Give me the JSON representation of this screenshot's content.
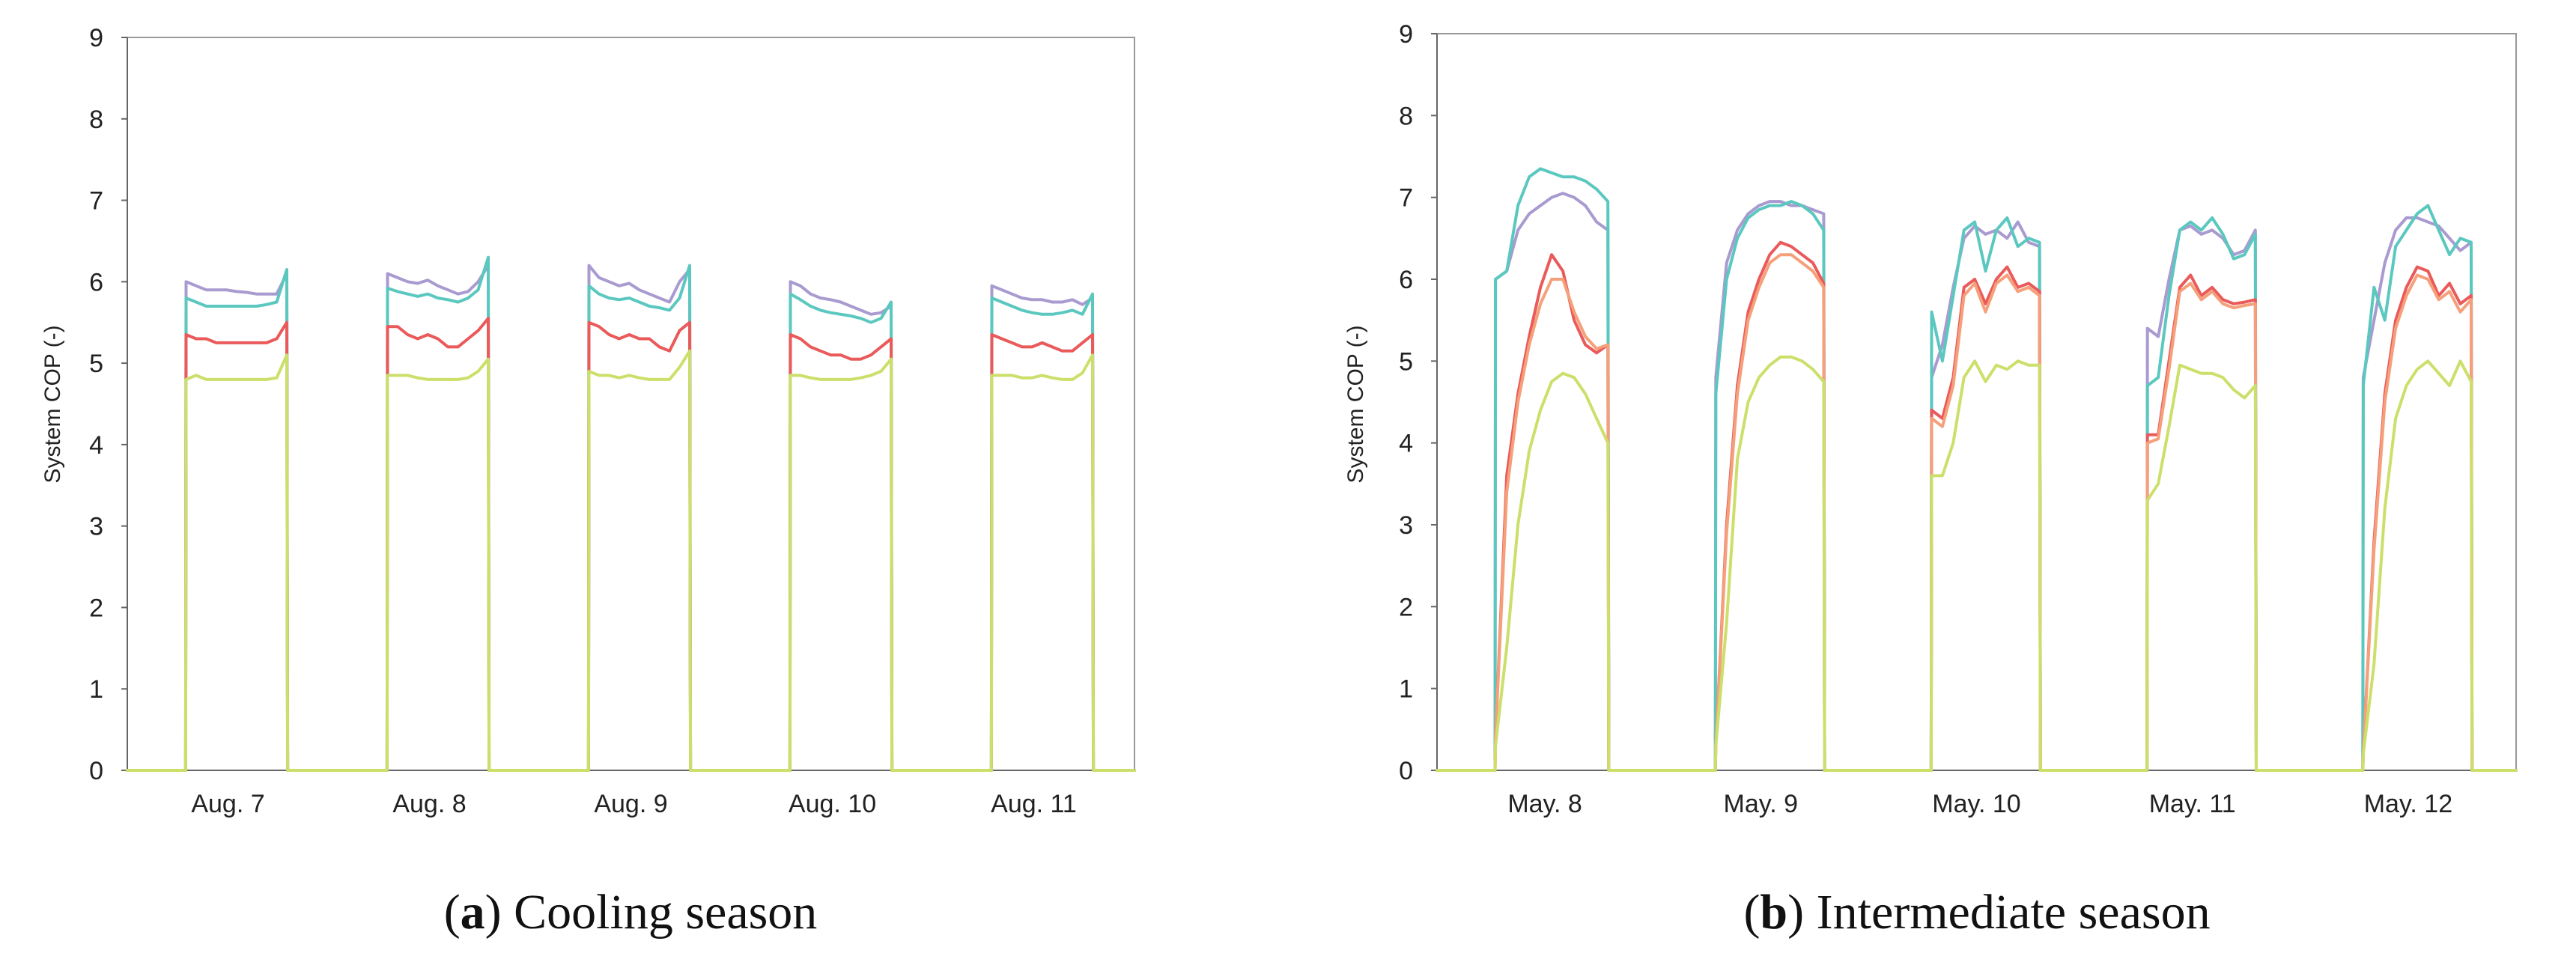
{
  "chart_data": [
    {
      "type": "line",
      "panel_letter": "a",
      "caption": "Cooling season",
      "ylabel": "System COP (-)",
      "ylim": [
        0,
        9
      ],
      "yticks": [
        "0",
        "1",
        "2",
        "3",
        "4",
        "5",
        "6",
        "7",
        "8",
        "9"
      ],
      "days": [
        "Aug. 7",
        "Aug. 8",
        "Aug. 9",
        "Aug. 10",
        "Aug. 11"
      ],
      "hours_per_day": 24,
      "grid": false,
      "legend": "none",
      "series": [
        {
          "name": "purple",
          "color": "#a99ad0",
          "days": [
            {
              "on": 7,
              "off": 19,
              "values": [
                6.0,
                5.95,
                5.9,
                5.9,
                5.9,
                5.88,
                5.87,
                5.85,
                5.85,
                5.85,
                6.1
              ]
            },
            {
              "on": 7,
              "off": 19,
              "values": [
                6.1,
                6.05,
                6.0,
                5.98,
                6.02,
                5.95,
                5.9,
                5.85,
                5.88,
                6.0,
                6.2
              ]
            },
            {
              "on": 7,
              "off": 19,
              "values": [
                6.2,
                6.05,
                6.0,
                5.95,
                5.98,
                5.9,
                5.85,
                5.8,
                5.75,
                6.0,
                6.15
              ]
            },
            {
              "on": 7,
              "off": 19,
              "values": [
                6.0,
                5.95,
                5.85,
                5.8,
                5.78,
                5.75,
                5.7,
                5.65,
                5.6,
                5.62,
                5.7
              ]
            },
            {
              "on": 7,
              "off": 19,
              "values": [
                5.95,
                5.9,
                5.85,
                5.8,
                5.78,
                5.78,
                5.75,
                5.75,
                5.78,
                5.72,
                5.8
              ]
            }
          ]
        },
        {
          "name": "cyan",
          "color": "#5bc8c0",
          "days": [
            {
              "on": 7,
              "off": 19,
              "values": [
                5.8,
                5.75,
                5.7,
                5.7,
                5.7,
                5.7,
                5.7,
                5.7,
                5.72,
                5.75,
                6.15
              ]
            },
            {
              "on": 7,
              "off": 19,
              "values": [
                5.92,
                5.88,
                5.85,
                5.82,
                5.85,
                5.8,
                5.78,
                5.75,
                5.8,
                5.9,
                6.3
              ]
            },
            {
              "on": 7,
              "off": 19,
              "values": [
                5.95,
                5.85,
                5.8,
                5.78,
                5.8,
                5.75,
                5.7,
                5.68,
                5.65,
                5.8,
                6.2
              ]
            },
            {
              "on": 7,
              "off": 19,
              "values": [
                5.85,
                5.78,
                5.7,
                5.65,
                5.62,
                5.6,
                5.58,
                5.55,
                5.5,
                5.55,
                5.75
              ]
            },
            {
              "on": 7,
              "off": 19,
              "values": [
                5.8,
                5.75,
                5.7,
                5.65,
                5.62,
                5.6,
                5.6,
                5.62,
                5.65,
                5.6,
                5.85
              ]
            }
          ]
        },
        {
          "name": "red",
          "color": "#ea5a5a",
          "days": [
            {
              "on": 7,
              "off": 19,
              "values": [
                5.35,
                5.3,
                5.3,
                5.25,
                5.25,
                5.25,
                5.25,
                5.25,
                5.25,
                5.3,
                5.5
              ]
            },
            {
              "on": 7,
              "off": 19,
              "values": [
                5.45,
                5.45,
                5.35,
                5.3,
                5.35,
                5.3,
                5.2,
                5.2,
                5.3,
                5.4,
                5.55
              ]
            },
            {
              "on": 7,
              "off": 19,
              "values": [
                5.5,
                5.45,
                5.35,
                5.3,
                5.35,
                5.3,
                5.3,
                5.2,
                5.15,
                5.4,
                5.5
              ]
            },
            {
              "on": 7,
              "off": 19,
              "values": [
                5.35,
                5.3,
                5.2,
                5.15,
                5.1,
                5.1,
                5.05,
                5.05,
                5.1,
                5.2,
                5.3
              ]
            },
            {
              "on": 7,
              "off": 19,
              "values": [
                5.35,
                5.3,
                5.25,
                5.2,
                5.2,
                5.25,
                5.2,
                5.15,
                5.15,
                5.25,
                5.35
              ]
            }
          ]
        },
        {
          "name": "yellow-green",
          "color": "#ccdf6a",
          "days": [
            {
              "on": 7,
              "off": 19,
              "values": [
                4.8,
                4.85,
                4.8,
                4.8,
                4.8,
                4.8,
                4.8,
                4.8,
                4.8,
                4.82,
                5.1
              ]
            },
            {
              "on": 7,
              "off": 19,
              "values": [
                4.85,
                4.85,
                4.85,
                4.82,
                4.8,
                4.8,
                4.8,
                4.8,
                4.82,
                4.9,
                5.05
              ]
            },
            {
              "on": 7,
              "off": 19,
              "values": [
                4.9,
                4.85,
                4.85,
                4.82,
                4.85,
                4.82,
                4.8,
                4.8,
                4.8,
                4.95,
                5.15
              ]
            },
            {
              "on": 7,
              "off": 19,
              "values": [
                4.85,
                4.85,
                4.82,
                4.8,
                4.8,
                4.8,
                4.8,
                4.82,
                4.85,
                4.9,
                5.05
              ]
            },
            {
              "on": 7,
              "off": 19,
              "values": [
                4.85,
                4.85,
                4.85,
                4.82,
                4.82,
                4.85,
                4.82,
                4.8,
                4.8,
                4.88,
                5.1
              ]
            }
          ]
        }
      ]
    },
    {
      "type": "line",
      "panel_letter": "b",
      "caption": "Intermediate season",
      "ylabel": "System COP (-)",
      "ylim": [
        0,
        9
      ],
      "yticks": [
        "0",
        "1",
        "2",
        "3",
        "4",
        "5",
        "6",
        "7",
        "8",
        "9"
      ],
      "days": [
        "May. 8",
        "May. 9",
        "May. 10",
        "May. 11",
        "May. 12"
      ],
      "hours_per_day": 24,
      "grid": false,
      "legend": "none",
      "series": [
        {
          "name": "purple",
          "color": "#a99ad0",
          "days": [
            {
              "on": 6.5,
              "off": 19,
              "values": [
                6.0,
                6.1,
                6.6,
                6.8,
                6.9,
                7.0,
                7.05,
                7.0,
                6.9,
                6.7,
                6.6
              ]
            },
            {
              "on": 7,
              "off": 19,
              "values": [
                4.8,
                6.2,
                6.6,
                6.8,
                6.9,
                6.95,
                6.95,
                6.9,
                6.9,
                6.85,
                6.8
              ]
            },
            {
              "on": 7,
              "off": 19,
              "values": [
                4.8,
                5.2,
                5.9,
                6.5,
                6.65,
                6.55,
                6.6,
                6.5,
                6.7,
                6.45,
                6.4
              ]
            },
            {
              "on": 7,
              "off": 19,
              "values": [
                5.4,
                5.3,
                6.0,
                6.6,
                6.65,
                6.55,
                6.6,
                6.5,
                6.3,
                6.35,
                6.6
              ]
            },
            {
              "on": 7,
              "off": 19,
              "values": [
                4.8,
                5.5,
                6.2,
                6.6,
                6.75,
                6.75,
                6.7,
                6.65,
                6.5,
                6.35,
                6.45
              ]
            }
          ]
        },
        {
          "name": "cyan",
          "color": "#5bc8c0",
          "days": [
            {
              "on": 6.5,
              "off": 19,
              "values": [
                6.0,
                6.1,
                6.9,
                7.25,
                7.35,
                7.3,
                7.25,
                7.25,
                7.2,
                7.1,
                6.95
              ]
            },
            {
              "on": 7,
              "off": 19,
              "values": [
                4.6,
                6.0,
                6.5,
                6.75,
                6.85,
                6.9,
                6.9,
                6.95,
                6.9,
                6.8,
                6.6
              ]
            },
            {
              "on": 7,
              "off": 19,
              "values": [
                5.6,
                5.0,
                5.8,
                6.6,
                6.7,
                6.1,
                6.6,
                6.75,
                6.4,
                6.5,
                6.45
              ]
            },
            {
              "on": 7,
              "off": 19,
              "values": [
                4.7,
                4.8,
                5.8,
                6.6,
                6.7,
                6.6,
                6.75,
                6.55,
                6.25,
                6.3,
                6.55
              ]
            },
            {
              "on": 7,
              "off": 19,
              "values": [
                4.7,
                5.9,
                5.5,
                6.4,
                6.6,
                6.8,
                6.9,
                6.6,
                6.3,
                6.5,
                6.45
              ]
            }
          ]
        },
        {
          "name": "red",
          "color": "#ea5a5a",
          "days": [
            {
              "on": 6.5,
              "off": 19,
              "values": [
                0.4,
                3.6,
                4.6,
                5.3,
                5.9,
                6.3,
                6.1,
                5.5,
                5.2,
                5.1,
                5.2
              ]
            },
            {
              "on": 7,
              "off": 19,
              "values": [
                0.3,
                3.0,
                4.7,
                5.6,
                6.0,
                6.3,
                6.45,
                6.4,
                6.3,
                6.2,
                5.95
              ]
            },
            {
              "on": 7,
              "off": 19,
              "values": [
                4.4,
                4.3,
                4.8,
                5.9,
                6.0,
                5.7,
                6.0,
                6.15,
                5.9,
                5.95,
                5.85
              ]
            },
            {
              "on": 7,
              "off": 19,
              "values": [
                4.1,
                4.1,
                5.0,
                5.9,
                6.05,
                5.8,
                5.9,
                5.75,
                5.7,
                5.72,
                5.75
              ]
            },
            {
              "on": 7,
              "off": 19,
              "values": [
                0.2,
                2.8,
                4.6,
                5.5,
                5.9,
                6.15,
                6.1,
                5.8,
                5.95,
                5.7,
                5.8
              ]
            }
          ]
        },
        {
          "name": "orange",
          "color": "#f5a07a",
          "days": [
            {
              "on": 6.5,
              "off": 19,
              "values": [
                0.4,
                3.4,
                4.5,
                5.2,
                5.7,
                6.0,
                6.0,
                5.6,
                5.3,
                5.15,
                5.2
              ]
            },
            {
              "on": 7,
              "off": 19,
              "values": [
                0.3,
                2.9,
                4.6,
                5.5,
                5.9,
                6.2,
                6.3,
                6.3,
                6.2,
                6.1,
                5.9
              ]
            },
            {
              "on": 7,
              "off": 19,
              "values": [
                4.3,
                4.2,
                4.7,
                5.8,
                5.95,
                5.6,
                5.95,
                6.05,
                5.85,
                5.9,
                5.8
              ]
            },
            {
              "on": 7,
              "off": 19,
              "values": [
                4.0,
                4.05,
                4.9,
                5.85,
                5.95,
                5.75,
                5.85,
                5.7,
                5.65,
                5.68,
                5.7
              ]
            },
            {
              "on": 7,
              "off": 19,
              "values": [
                0.2,
                2.7,
                4.5,
                5.4,
                5.8,
                6.05,
                6.0,
                5.75,
                5.85,
                5.6,
                5.75
              ]
            }
          ]
        },
        {
          "name": "yellow-green",
          "color": "#ccdf6a",
          "days": [
            {
              "on": 6.5,
              "off": 19,
              "values": [
                0.3,
                1.5,
                3.0,
                3.9,
                4.4,
                4.75,
                4.85,
                4.8,
                4.6,
                4.3,
                4.0
              ]
            },
            {
              "on": 7,
              "off": 19,
              "values": [
                0.3,
                1.8,
                3.8,
                4.5,
                4.8,
                4.95,
                5.05,
                5.05,
                5.0,
                4.9,
                4.75
              ]
            },
            {
              "on": 7,
              "off": 19,
              "values": [
                3.6,
                3.6,
                4.0,
                4.8,
                5.0,
                4.75,
                4.95,
                4.9,
                5.0,
                4.95,
                4.95
              ]
            },
            {
              "on": 7,
              "off": 19,
              "values": [
                3.3,
                3.5,
                4.2,
                4.95,
                4.9,
                4.85,
                4.85,
                4.8,
                4.65,
                4.55,
                4.7
              ]
            },
            {
              "on": 7,
              "off": 19,
              "values": [
                0.2,
                1.3,
                3.2,
                4.3,
                4.7,
                4.9,
                5.0,
                4.85,
                4.7,
                5.0,
                4.75
              ]
            }
          ]
        }
      ]
    }
  ]
}
